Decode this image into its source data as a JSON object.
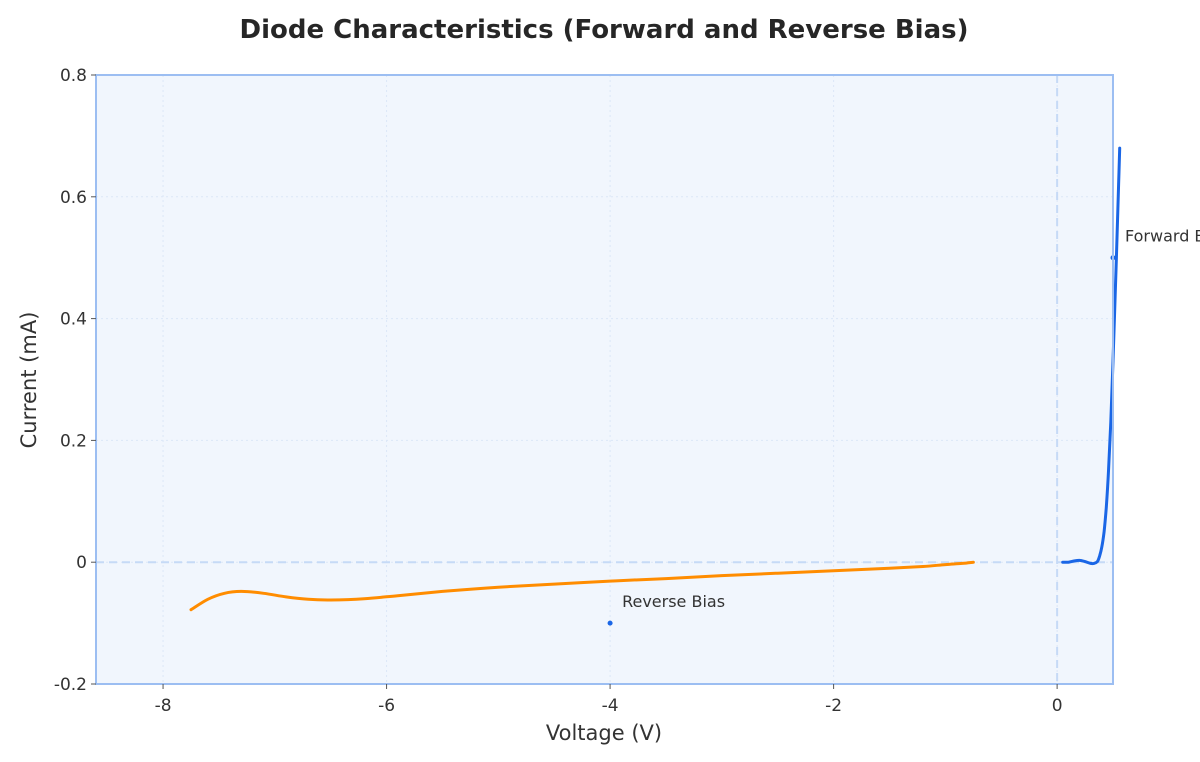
{
  "chart_data": {
    "type": "line",
    "title": "Diode Characteristics (Forward and Reverse Bias)",
    "xlabel": "Voltage (V)",
    "ylabel": "Current (mA)",
    "xlim": [
      -8.6,
      0.5
    ],
    "ylim": [
      -0.2,
      0.8
    ],
    "x_ticks": [
      -8,
      -6,
      -4,
      -2,
      0
    ],
    "x_tick_labels": [
      "-8",
      "-6",
      "-4",
      "-2",
      "0"
    ],
    "y_ticks": [
      -0.2,
      0,
      0.2,
      0.4,
      0.6,
      0.8
    ],
    "y_tick_labels": [
      "-0.2",
      "0",
      "0.2",
      "0.4",
      "0.6",
      "0.8"
    ],
    "grid": true,
    "reference_lines": {
      "x": 0,
      "y": 0
    },
    "series": [
      {
        "color": "#ff8c00",
        "x": [
          -7.75,
          -7.6,
          -7.45,
          -7.3,
          -7.1,
          -6.9,
          -6.7,
          -6.5,
          -6.2,
          -5.9,
          -5.5,
          -5.0,
          -4.5,
          -4.0,
          -3.5,
          -3.0,
          -2.5,
          -2.0,
          -1.5,
          -1.2,
          -1.0,
          -0.85,
          -0.75
        ],
        "y": [
          -0.078,
          -0.061,
          -0.051,
          -0.048,
          -0.051,
          -0.057,
          -0.061,
          -0.062,
          -0.06,
          -0.055,
          -0.048,
          -0.041,
          -0.036,
          -0.031,
          -0.027,
          -0.022,
          -0.018,
          -0.014,
          -0.01,
          -0.007,
          -0.004,
          -0.002,
          0.0
        ]
      },
      {
        "color": "#1a66e6",
        "x": [
          0.05,
          0.1,
          0.15,
          0.2,
          0.25,
          0.3,
          0.33,
          0.36,
          0.38,
          0.4,
          0.42,
          0.44,
          0.46,
          0.48,
          0.5,
          0.52,
          0.53,
          0.54,
          0.55,
          0.56
        ],
        "y": [
          0.0,
          0.0,
          0.002,
          0.003,
          0.001,
          -0.002,
          -0.002,
          0.001,
          0.01,
          0.025,
          0.05,
          0.09,
          0.15,
          0.23,
          0.33,
          0.44,
          0.5,
          0.56,
          0.62,
          0.68
        ]
      }
    ],
    "annotations": [
      {
        "text": "Forward Bias",
        "x": 0.5,
        "y": 0.5,
        "color": "#1a66e6"
      },
      {
        "text": "Reverse Bias",
        "x": -4,
        "y": -0.1,
        "color": "#1a66e6"
      }
    ],
    "colors": {
      "plot_background": "#f1f6fd",
      "frame": "#9cbef2",
      "grid": "#dce7f7",
      "reference_line": "#c6daf6"
    }
  }
}
